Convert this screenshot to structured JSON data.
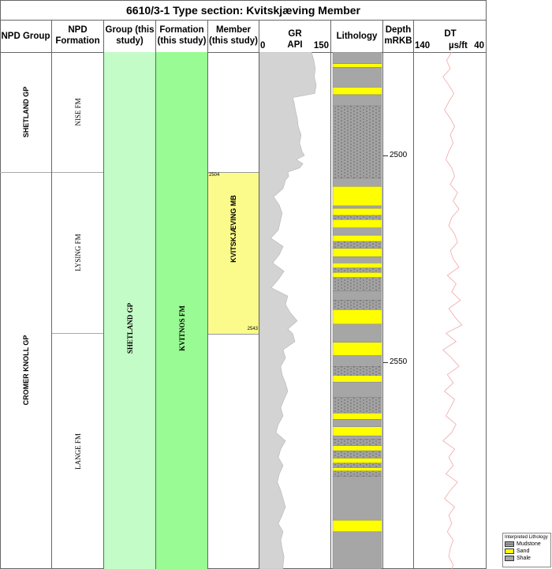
{
  "title": "6610/3-1 Type section: Kvitskjæving Member",
  "headers": {
    "npd_group": "NPD Group",
    "npd_formation": "NPD Formation",
    "group": "Group (this study)",
    "formation": "Formation (this study)",
    "member": "Member (this study)",
    "gr_name": "GR",
    "gr_unit": "API",
    "gr_min": "0",
    "gr_max": "150",
    "lithology": "Lithology",
    "depth_name": "Depth",
    "depth_unit": "mRKB",
    "dt_name": "DT",
    "dt_min": "140",
    "dt_unit": "µs/ft",
    "dt_max": "40"
  },
  "npd_groups": [
    {
      "label": "SHETLAND GP",
      "top": 2475,
      "base": 2504
    },
    {
      "label": "CROMER KNOLL GP",
      "top": 2504,
      "base": 2600
    }
  ],
  "npd_formations": [
    {
      "label": "NISE FM",
      "top": 2475,
      "base": 2504
    },
    {
      "label": "LYSING FM",
      "top": 2504,
      "base": 2543
    },
    {
      "label": "LANGE FM",
      "top": 2543,
      "base": 2600
    }
  ],
  "study_group": {
    "label": "SHETLAND GP",
    "color": "#c4fcc8"
  },
  "study_formation": {
    "label": "KVITNOS FM",
    "color": "#99fb93"
  },
  "member": {
    "label": "KVITSKJÆVING MB",
    "top": 2504,
    "base": 2543,
    "top_label": "2504",
    "base_label": "2543",
    "color": "#fbfb8c"
  },
  "depth_axis": {
    "top": 2475,
    "base": 2600,
    "ticks": [
      {
        "value": 2500,
        "label": "2500"
      },
      {
        "value": 2550,
        "label": "2550"
      }
    ]
  },
  "lithology_colors": {
    "mudstone": "#9a9a9a",
    "sand": "#ffff00",
    "shale": "#a6a6a6"
  },
  "lithology": [
    {
      "type": "shale",
      "top": 2475,
      "base": 2477.8
    },
    {
      "type": "sand",
      "top": 2477.8,
      "base": 2478.7
    },
    {
      "type": "shale",
      "top": 2478.7,
      "base": 2483.5
    },
    {
      "type": "sand",
      "top": 2483.5,
      "base": 2485.3
    },
    {
      "type": "shale",
      "top": 2485.3,
      "base": 2488
    },
    {
      "type": "mudstone",
      "top": 2488,
      "base": 2505.5
    },
    {
      "type": "shale",
      "top": 2505.5,
      "base": 2507.5
    },
    {
      "type": "sand",
      "top": 2507.5,
      "base": 2512.2
    },
    {
      "type": "shale",
      "top": 2512.2,
      "base": 2512.8
    },
    {
      "type": "sand",
      "top": 2512.8,
      "base": 2514.5
    },
    {
      "type": "mudstone",
      "top": 2514.5,
      "base": 2515.5
    },
    {
      "type": "sand",
      "top": 2515.5,
      "base": 2517.5
    },
    {
      "type": "shale",
      "top": 2517.5,
      "base": 2519.3
    },
    {
      "type": "sand",
      "top": 2519.3,
      "base": 2520.8
    },
    {
      "type": "mudstone",
      "top": 2520.8,
      "base": 2522.5
    },
    {
      "type": "sand",
      "top": 2522.5,
      "base": 2524.5
    },
    {
      "type": "shale",
      "top": 2524.5,
      "base": 2526
    },
    {
      "type": "sand",
      "top": 2526,
      "base": 2527.2
    },
    {
      "type": "mudstone",
      "top": 2527.2,
      "base": 2528.3
    },
    {
      "type": "sand",
      "top": 2528.3,
      "base": 2529.5
    },
    {
      "type": "mudstone",
      "top": 2529.5,
      "base": 2532.8
    },
    {
      "type": "shale",
      "top": 2532.8,
      "base": 2535
    },
    {
      "type": "mudstone",
      "top": 2535,
      "base": 2537.3
    },
    {
      "type": "sand",
      "top": 2537.3,
      "base": 2540.8
    },
    {
      "type": "shale",
      "top": 2540.8,
      "base": 2545.2
    },
    {
      "type": "sand",
      "top": 2545.2,
      "base": 2548.4
    },
    {
      "type": "shale",
      "top": 2548.4,
      "base": 2551
    },
    {
      "type": "mudstone",
      "top": 2551,
      "base": 2553.2
    },
    {
      "type": "sand",
      "top": 2553.2,
      "base": 2554.8
    },
    {
      "type": "shale",
      "top": 2554.8,
      "base": 2558.5
    },
    {
      "type": "mudstone",
      "top": 2558.5,
      "base": 2562.3
    },
    {
      "type": "sand",
      "top": 2562.3,
      "base": 2563.8
    },
    {
      "type": "shale",
      "top": 2563.8,
      "base": 2565.6
    },
    {
      "type": "sand",
      "top": 2565.6,
      "base": 2567.8
    },
    {
      "type": "shale",
      "top": 2567.8,
      "base": 2568.6
    },
    {
      "type": "mudstone",
      "top": 2568.6,
      "base": 2570.2
    },
    {
      "type": "sand",
      "top": 2570.2,
      "base": 2571.4
    },
    {
      "type": "mudstone",
      "top": 2571.4,
      "base": 2573.2
    },
    {
      "type": "sand",
      "top": 2573.2,
      "base": 2574.4
    },
    {
      "type": "mudstone",
      "top": 2574.4,
      "base": 2575.5
    },
    {
      "type": "sand",
      "top": 2575.5,
      "base": 2576.3
    },
    {
      "type": "mudstone",
      "top": 2576.3,
      "base": 2577.6
    },
    {
      "type": "shale",
      "top": 2577.6,
      "base": 2588.2
    },
    {
      "type": "sand",
      "top": 2588.2,
      "base": 2591
    },
    {
      "type": "shale",
      "top": 2591,
      "base": 2600
    }
  ],
  "gr_curve": {
    "depth": [
      2475,
      2477,
      2479,
      2481,
      2483,
      2485,
      2486,
      2487,
      2489,
      2491,
      2493,
      2495,
      2497,
      2499,
      2500,
      2501,
      2502,
      2503,
      2504,
      2505,
      2506,
      2508,
      2510,
      2512,
      2514,
      2516,
      2518,
      2520,
      2522,
      2524,
      2526,
      2528,
      2530,
      2532,
      2534,
      2536,
      2538,
      2540,
      2542,
      2543,
      2545,
      2547,
      2549,
      2551,
      2553,
      2555,
      2557,
      2559,
      2561,
      2563,
      2565,
      2567,
      2569,
      2571,
      2573,
      2575,
      2577,
      2579,
      2581,
      2583,
      2585,
      2587,
      2589,
      2591,
      2593,
      2595,
      2597,
      2599,
      2600
    ],
    "api": [
      110,
      115,
      118,
      116,
      120,
      117,
      70,
      73,
      76,
      80,
      82,
      88,
      85,
      90,
      95,
      78,
      92,
      85,
      60,
      62,
      55,
      50,
      30,
      42,
      48,
      44,
      40,
      24,
      50,
      42,
      28,
      52,
      40,
      25,
      60,
      55,
      65,
      80,
      60,
      70,
      75,
      50,
      55,
      45,
      48,
      55,
      60,
      52,
      45,
      50,
      40,
      35,
      55,
      45,
      40,
      50,
      42,
      38,
      45,
      50,
      55,
      48,
      40,
      50,
      45,
      48,
      52,
      50,
      50
    ]
  },
  "dt_curve": {
    "depth": [
      2475,
      2477,
      2479,
      2481,
      2483,
      2485,
      2487,
      2489,
      2491,
      2493,
      2495,
      2497,
      2499,
      2501,
      2503,
      2505,
      2507,
      2509,
      2511,
      2513,
      2515,
      2517,
      2519,
      2521,
      2523,
      2525,
      2527,
      2529,
      2531,
      2533,
      2535,
      2537,
      2539,
      2541,
      2543,
      2545,
      2547,
      2549,
      2551,
      2553,
      2555,
      2557,
      2559,
      2561,
      2563,
      2565,
      2567,
      2569,
      2571,
      2573,
      2575,
      2577,
      2579,
      2581,
      2583,
      2585,
      2587,
      2589,
      2591,
      2593,
      2595,
      2597,
      2599,
      2600
    ],
    "dt": [
      88,
      95,
      90,
      100,
      92,
      85,
      92,
      98,
      90,
      84,
      90,
      86,
      92,
      96,
      88,
      84,
      90,
      80,
      86,
      78,
      88,
      92,
      84,
      80,
      90,
      86,
      78,
      94,
      82,
      88,
      76,
      92,
      84,
      74,
      96,
      82,
      100,
      88,
      78,
      94,
      86,
      98,
      84,
      90,
      96,
      82,
      88,
      100,
      84,
      92,
      86,
      96,
      80,
      90,
      98,
      84,
      92,
      88,
      94,
      86,
      90,
      92,
      86,
      88
    ]
  },
  "legend": {
    "title": "Interpreted Lithology",
    "items": [
      {
        "type": "mudstone",
        "label": "Mudstone"
      },
      {
        "type": "sand",
        "label": "Sand"
      },
      {
        "type": "shale",
        "label": "Shale"
      }
    ]
  }
}
